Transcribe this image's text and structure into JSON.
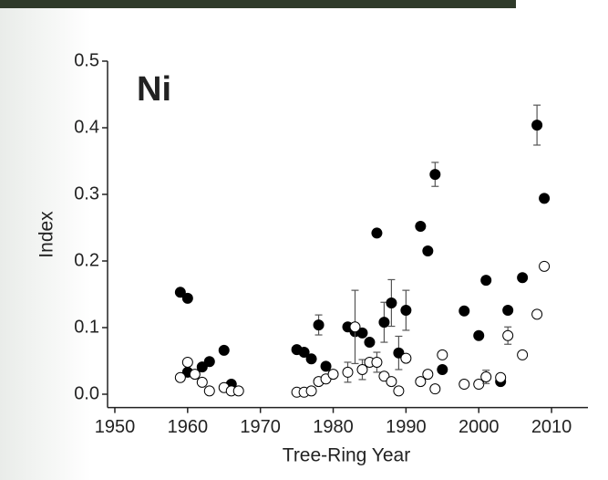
{
  "chart_data": {
    "type": "scatter",
    "annotation": "Ni",
    "xlabel": "Tree-Ring Year",
    "ylabel": "Index",
    "xlim": [
      1949,
      2015
    ],
    "xticks": [
      1950,
      1960,
      1970,
      1980,
      1990,
      2000,
      2010
    ],
    "ylim": [
      -0.02,
      0.5
    ],
    "yticks": [
      {
        "value": 0,
        "label": "0.0"
      },
      0.1,
      0.2,
      0.3,
      0.4,
      0.5
    ],
    "series": [
      {
        "color": "#000000",
        "fill": "#000000",
        "x": [
          1959,
          1960,
          1960,
          1962,
          1963,
          1965,
          1966,
          1975,
          1976,
          1977,
          1978,
          1979,
          1982,
          1983,
          1984,
          1985,
          1986,
          1987,
          1988,
          1989,
          1990,
          1992,
          1993,
          1994,
          1995,
          1998,
          2000,
          2001,
          2003,
          2004,
          2006,
          2008,
          2009
        ],
        "values": [
          0.153,
          0.144,
          0.033,
          0.041,
          0.049,
          0.066,
          0.015,
          0.067,
          0.063,
          0.053,
          0.104,
          0.042,
          0.101,
          0.094,
          0.092,
          0.078,
          0.242,
          0.108,
          0.137,
          0.062,
          0.126,
          0.252,
          0.215,
          0.33,
          0.037,
          0.125,
          0.088,
          0.171,
          0.019,
          0.126,
          0.175,
          0.404,
          0.294
        ],
        "errors": [
          null,
          null,
          null,
          null,
          null,
          null,
          null,
          null,
          null,
          null,
          0.015,
          null,
          null,
          null,
          null,
          null,
          null,
          0.03,
          0.035,
          0.025,
          0.03,
          null,
          null,
          0.018,
          null,
          null,
          null,
          null,
          null,
          null,
          null,
          0.03,
          null
        ]
      },
      {
        "color": "#000000",
        "fill": "#ffffff",
        "x": [
          1959,
          1960,
          1961,
          1962,
          1963,
          1965,
          1966,
          1967,
          1975,
          1976,
          1977,
          1978,
          1979,
          1980,
          1982,
          1983,
          1984,
          1985,
          1986,
          1987,
          1988,
          1989,
          1990,
          1992,
          1993,
          1994,
          1995,
          1998,
          2000,
          2001,
          2003,
          2004,
          2006,
          2008,
          2009
        ],
        "values": [
          0.025,
          0.048,
          0.03,
          0.018,
          0.005,
          0.01,
          0.005,
          0.005,
          0.003,
          0.003,
          0.005,
          0.019,
          0.023,
          0.03,
          0.033,
          0.101,
          0.037,
          0.048,
          0.048,
          0.027,
          0.019,
          0.005,
          0.054,
          0.019,
          0.03,
          0.008,
          0.059,
          0.015,
          0.015,
          0.026,
          0.025,
          0.088,
          0.059,
          0.12,
          0.192
        ],
        "errors": [
          null,
          null,
          null,
          null,
          null,
          null,
          null,
          null,
          null,
          null,
          null,
          null,
          null,
          null,
          0.015,
          0.055,
          0.015,
          null,
          0.015,
          null,
          null,
          null,
          null,
          null,
          null,
          null,
          null,
          null,
          null,
          0.01,
          null,
          0.013,
          null,
          null,
          null
        ]
      }
    ]
  }
}
